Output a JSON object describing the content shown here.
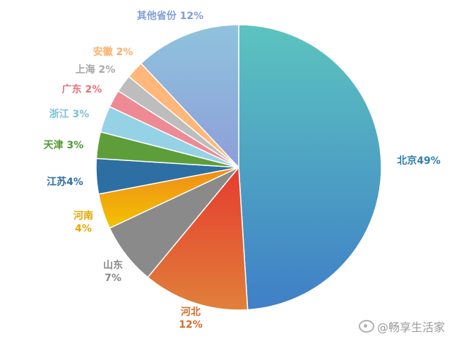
{
  "chart_data": {
    "type": "pie",
    "title": "",
    "slices": [
      {
        "label": "北京49%",
        "value": 49,
        "color": "#4aa8c9"
      },
      {
        "label": "河北 12%",
        "value": 12,
        "color": "#e06a33"
      },
      {
        "label": "山东 7%",
        "value": 7,
        "color": "#8a8a8a"
      },
      {
        "label": "河南 4%",
        "value": 4,
        "color": "#f0b400"
      },
      {
        "label": "江苏4%",
        "value": 4,
        "color": "#2e6fa3"
      },
      {
        "label": "天津 3%",
        "value": 3,
        "color": "#5e9e3a"
      },
      {
        "label": "浙江 3%",
        "value": 3,
        "color": "#96d2e6"
      },
      {
        "label": "广东 2%",
        "value": 2,
        "color": "#ee8a93"
      },
      {
        "label": "上海 2%",
        "value": 2,
        "color": "#bdbdbd"
      },
      {
        "label": "安徽 2%",
        "value": 2,
        "color": "#ffb77a"
      },
      {
        "label": "其他省份 12%",
        "value": 12,
        "color": "#8fb0d9"
      }
    ],
    "label_colors": [
      "#2f7fae",
      "#d86a2a",
      "#8a8a8a",
      "#e5a800",
      "#2e6fa3",
      "#4f9a2f",
      "#7cc0d8",
      "#e9707b",
      "#a8a8a8",
      "#ffad6a",
      "#7f9fd6"
    ]
  },
  "watermark": "@畅享生活家"
}
